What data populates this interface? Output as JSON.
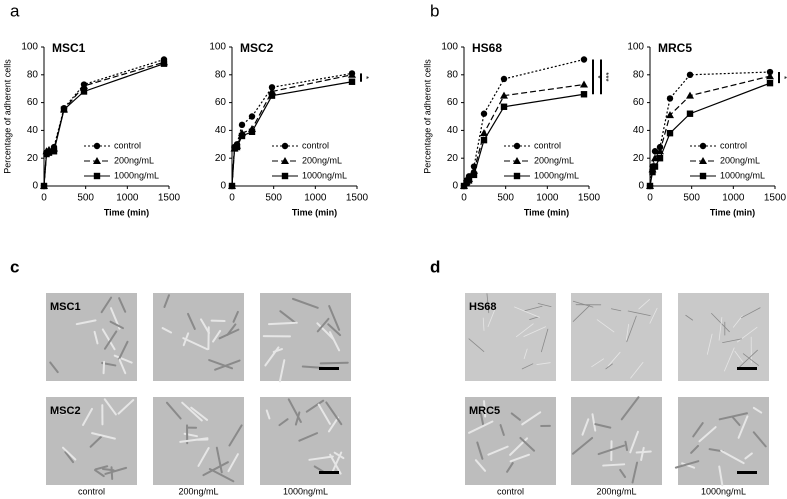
{
  "panel_labels": [
    "a",
    "b",
    "c",
    "d"
  ],
  "chart_data": [
    {
      "type": "line",
      "title": "MSC1",
      "ylabel": "Percentage of adherent cells",
      "xlabel": "Time (min)",
      "x": [
        0,
        30,
        60,
        120,
        240,
        480,
        1440
      ],
      "xlim": [
        0,
        1500
      ],
      "xticks": [
        0,
        500,
        1000,
        1500
      ],
      "ylim": [
        0,
        100
      ],
      "yticks": [
        0,
        20,
        40,
        60,
        80,
        100
      ],
      "series": [
        {
          "name": "control",
          "color": "#000000",
          "dash": "dotted",
          "marker": "circle",
          "values": [
            0,
            24,
            25,
            28,
            56,
            73,
            91
          ]
        },
        {
          "name": "200ng/mL",
          "color": "#000000",
          "dash": "dashed",
          "marker": "triangle",
          "values": [
            0,
            25,
            26,
            27,
            55,
            72,
            89
          ]
        },
        {
          "name": "1000ng/mL",
          "color": "#000000",
          "dash": "solid",
          "marker": "square",
          "values": [
            0,
            23,
            24,
            25,
            55,
            68,
            88
          ]
        }
      ],
      "annotations": []
    },
    {
      "type": "line",
      "title": "MSC2",
      "xlabel": "Time (min)",
      "x": [
        0,
        30,
        60,
        120,
        240,
        480,
        1440
      ],
      "xlim": [
        0,
        1500
      ],
      "xticks": [
        0,
        500,
        1000,
        1500
      ],
      "ylim": [
        0,
        100
      ],
      "yticks": [
        0,
        20,
        40,
        60,
        80,
        100
      ],
      "series": [
        {
          "name": "control",
          "color": "#000000",
          "dash": "dotted",
          "marker": "circle",
          "values": [
            0,
            28,
            30,
            44,
            50,
            71,
            81
          ]
        },
        {
          "name": "200ng/mL",
          "color": "#000000",
          "dash": "dashed",
          "marker": "triangle",
          "values": [
            0,
            27,
            29,
            38,
            41,
            68,
            80
          ]
        },
        {
          "name": "1000ng/mL",
          "color": "#000000",
          "dash": "solid",
          "marker": "square",
          "values": [
            0,
            27,
            28,
            36,
            39,
            65,
            75
          ]
        }
      ],
      "annotations": [
        "*"
      ]
    },
    {
      "type": "line",
      "title": "HS68",
      "ylabel": "Percentage of adherent cells",
      "xlabel": "Time (min)",
      "x": [
        0,
        30,
        60,
        120,
        240,
        480,
        1440
      ],
      "xlim": [
        0,
        1500
      ],
      "xticks": [
        0,
        500,
        1000,
        1500
      ],
      "ylim": [
        0,
        100
      ],
      "yticks": [
        0,
        20,
        40,
        60,
        80,
        100
      ],
      "series": [
        {
          "name": "control",
          "color": "#000000",
          "dash": "dotted",
          "marker": "circle",
          "values": [
            0,
            4,
            7,
            14,
            52,
            77,
            91
          ]
        },
        {
          "name": "200ng/mL",
          "color": "#000000",
          "dash": "dashed",
          "marker": "triangle",
          "values": [
            0,
            3,
            5,
            11,
            38,
            65,
            73
          ]
        },
        {
          "name": "1000ng/mL",
          "color": "#000000",
          "dash": "solid",
          "marker": "square",
          "values": [
            0,
            2,
            4,
            8,
            33,
            57,
            66
          ]
        }
      ],
      "annotations": [
        "*",
        "***"
      ]
    },
    {
      "type": "line",
      "title": "MRC5",
      "xlabel": "Time (min)",
      "x": [
        0,
        30,
        60,
        120,
        240,
        480,
        1440
      ],
      "xlim": [
        0,
        1500
      ],
      "xticks": [
        0,
        500,
        1000,
        1500
      ],
      "ylim": [
        0,
        100
      ],
      "yticks": [
        0,
        20,
        40,
        60,
        80,
        100
      ],
      "series": [
        {
          "name": "control",
          "color": "#000000",
          "dash": "dotted",
          "marker": "circle",
          "values": [
            0,
            14,
            25,
            28,
            63,
            80,
            82
          ]
        },
        {
          "name": "200ng/mL",
          "color": "#000000",
          "dash": "dashed",
          "marker": "triangle",
          "values": [
            0,
            12,
            20,
            25,
            51,
            65,
            79
          ]
        },
        {
          "name": "1000ng/mL",
          "color": "#000000",
          "dash": "solid",
          "marker": "square",
          "values": [
            0,
            10,
            14,
            20,
            38,
            52,
            74
          ]
        }
      ],
      "annotations": [
        "*"
      ]
    }
  ],
  "micrographs": [
    {
      "rows": [
        "MSC1",
        "MSC2"
      ],
      "columns": [
        "control",
        "200ng/mL",
        "1000ng/mL"
      ]
    },
    {
      "rows": [
        "HS68",
        "MRC5"
      ],
      "columns": [
        "control",
        "200ng/mL",
        "1000ng/mL"
      ]
    }
  ]
}
